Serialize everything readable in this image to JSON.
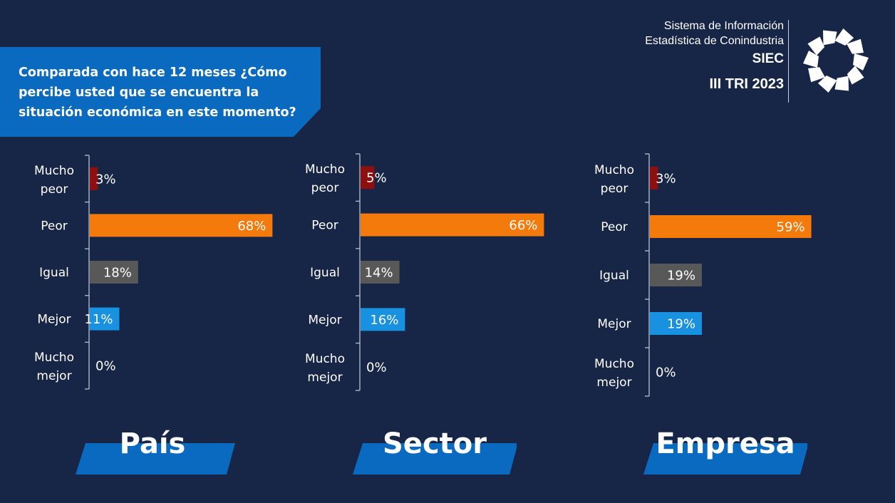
{
  "question": "Comparada con hace 12 meses ¿Cómo percibe usted que se encuentra la situación económica en este momento?",
  "header": {
    "line1": "Sistema de Información",
    "line2": "Estadística de Conindustria",
    "siec": "SIEC",
    "period": "III TRI 2023"
  },
  "colors": {
    "background": "#172546",
    "band": "#0a6ac0",
    "mucho_peor": "#8d1010",
    "peor": "#f47a0c",
    "igual": "#585858",
    "mejor": "#1891e0"
  },
  "chart_data": [
    {
      "type": "bar",
      "orientation": "horizontal",
      "title": "País",
      "categories": [
        "Mucho peor",
        "Peor",
        "Igual",
        "Mejor",
        "Mucho mejor"
      ],
      "values": [
        3,
        68,
        18,
        11,
        0
      ],
      "value_labels": [
        "3%",
        "68%",
        "18%",
        "11%",
        "0%"
      ]
    },
    {
      "type": "bar",
      "orientation": "horizontal",
      "title": "Sector",
      "categories": [
        "Mucho peor",
        "Peor",
        "Igual",
        "Mejor",
        "Mucho mejor"
      ],
      "values": [
        5,
        66,
        14,
        16,
        0
      ],
      "value_labels": [
        "5%",
        "66%",
        "14%",
        "16%",
        "0%"
      ]
    },
    {
      "type": "bar",
      "orientation": "horizontal",
      "title": "Empresa",
      "categories": [
        "Mucho peor",
        "Peor",
        "Igual",
        "Mejor",
        "Mucho mejor"
      ],
      "values": [
        3,
        59,
        19,
        19,
        0
      ],
      "value_labels": [
        "3%",
        "59%",
        "19%",
        "19%",
        "0%"
      ]
    }
  ]
}
